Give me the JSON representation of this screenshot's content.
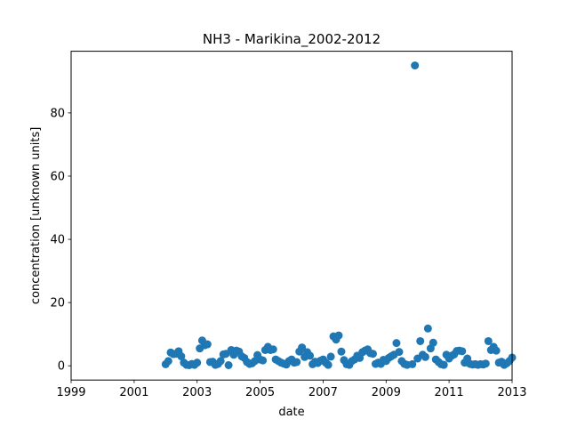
{
  "chart_data": {
    "type": "scatter",
    "title": "NH3 - Marikina_2002-2012",
    "xlabel": "date",
    "ylabel": "concentration [unknown units]",
    "x_is_date": true,
    "xlim": [
      "1999-01-01",
      "2013-01-01"
    ],
    "ylim": [
      -4.5,
      99.5
    ],
    "x_ticks": [
      "1999",
      "2001",
      "2003",
      "2005",
      "2007",
      "2009",
      "2011",
      "2013"
    ],
    "y_ticks": [
      0,
      20,
      40,
      60,
      80
    ],
    "grid": false,
    "legend": "none",
    "color": "#1f77b4",
    "series": [
      {
        "points": [
          [
            "2002-01-01",
            0.5
          ],
          [
            "2002-02-01",
            1.5
          ],
          [
            "2002-03-01",
            4.2
          ],
          [
            "2002-04-01",
            3.7
          ],
          [
            "2002-05-01",
            3.8
          ],
          [
            "2002-06-01",
            4.6
          ],
          [
            "2002-07-01",
            3.0
          ],
          [
            "2002-08-01",
            1.0
          ],
          [
            "2002-09-01",
            0.3
          ],
          [
            "2002-10-01",
            0.2
          ],
          [
            "2002-11-01",
            0.6
          ],
          [
            "2002-12-01",
            0.3
          ],
          [
            "2003-01-01",
            1.0
          ],
          [
            "2003-02-01",
            5.5
          ],
          [
            "2003-03-01",
            8.0
          ],
          [
            "2003-04-01",
            6.5
          ],
          [
            "2003-05-01",
            6.8
          ],
          [
            "2003-06-01",
            1.2
          ],
          [
            "2003-07-01",
            1.3
          ],
          [
            "2003-08-01",
            0.3
          ],
          [
            "2003-09-01",
            0.6
          ],
          [
            "2003-10-01",
            1.5
          ],
          [
            "2003-11-01",
            3.6
          ],
          [
            "2003-12-01",
            3.8
          ],
          [
            "2004-01-01",
            0.2
          ],
          [
            "2004-02-01",
            5.0
          ],
          [
            "2004-03-01",
            3.5
          ],
          [
            "2004-04-01",
            4.8
          ],
          [
            "2004-05-01",
            4.5
          ],
          [
            "2004-06-01",
            3.0
          ],
          [
            "2004-07-01",
            2.5
          ],
          [
            "2004-08-01",
            1.2
          ],
          [
            "2004-09-01",
            0.6
          ],
          [
            "2004-10-01",
            0.8
          ],
          [
            "2004-11-01",
            1.5
          ],
          [
            "2004-12-01",
            3.4
          ],
          [
            "2005-01-01",
            2.0
          ],
          [
            "2005-02-01",
            1.7
          ],
          [
            "2005-03-01",
            5.0
          ],
          [
            "2005-04-01",
            6.0
          ],
          [
            "2005-05-01",
            5.0
          ],
          [
            "2005-06-01",
            5.2
          ],
          [
            "2005-07-01",
            2.0
          ],
          [
            "2005-08-01",
            1.5
          ],
          [
            "2005-09-01",
            1.0
          ],
          [
            "2005-10-01",
            0.7
          ],
          [
            "2005-11-01",
            0.4
          ],
          [
            "2005-12-01",
            1.5
          ],
          [
            "2006-01-01",
            2.0
          ],
          [
            "2006-02-01",
            1.0
          ],
          [
            "2006-03-01",
            1.2
          ],
          [
            "2006-04-01",
            4.5
          ],
          [
            "2006-05-01",
            5.8
          ],
          [
            "2006-06-01",
            2.8
          ],
          [
            "2006-07-01",
            4.3
          ],
          [
            "2006-08-01",
            3.2
          ],
          [
            "2006-09-01",
            0.5
          ],
          [
            "2006-10-01",
            1.3
          ],
          [
            "2006-11-01",
            0.9
          ],
          [
            "2006-12-01",
            1.6
          ],
          [
            "2007-01-01",
            2.0
          ],
          [
            "2007-02-01",
            1.0
          ],
          [
            "2007-03-01",
            0.3
          ],
          [
            "2007-04-01",
            2.9
          ],
          [
            "2007-05-01",
            9.3
          ],
          [
            "2007-06-01",
            8.3
          ],
          [
            "2007-07-01",
            9.6
          ],
          [
            "2007-08-01",
            4.5
          ],
          [
            "2007-09-01",
            1.8
          ],
          [
            "2007-10-01",
            0.5
          ],
          [
            "2007-11-01",
            0.3
          ],
          [
            "2007-12-01",
            1.5
          ],
          [
            "2008-01-01",
            2.0
          ],
          [
            "2008-02-01",
            3.2
          ],
          [
            "2008-03-01",
            2.5
          ],
          [
            "2008-04-01",
            4.3
          ],
          [
            "2008-05-01",
            4.8
          ],
          [
            "2008-06-01",
            5.2
          ],
          [
            "2008-07-01",
            4.0
          ],
          [
            "2008-08-01",
            3.8
          ],
          [
            "2008-09-01",
            0.6
          ],
          [
            "2008-10-01",
            1.0
          ],
          [
            "2008-11-01",
            0.6
          ],
          [
            "2008-12-01",
            1.9
          ],
          [
            "2009-01-01",
            1.5
          ],
          [
            "2009-02-01",
            2.5
          ],
          [
            "2009-03-01",
            3.0
          ],
          [
            "2009-04-01",
            3.5
          ],
          [
            "2009-05-01",
            7.2
          ],
          [
            "2009-06-01",
            4.4
          ],
          [
            "2009-07-01",
            1.5
          ],
          [
            "2009-08-01",
            0.6
          ],
          [
            "2009-09-01",
            0.3
          ],
          [
            "2009-11-01",
            0.5
          ],
          [
            "2009-12-01",
            95.0
          ],
          [
            "2010-01-01",
            2.3
          ],
          [
            "2010-02-01",
            7.8
          ],
          [
            "2010-03-01",
            3.5
          ],
          [
            "2010-04-01",
            2.8
          ],
          [
            "2010-05-01",
            11.8
          ],
          [
            "2010-06-01",
            5.5
          ],
          [
            "2010-07-01",
            7.3
          ],
          [
            "2010-08-01",
            2.0
          ],
          [
            "2010-09-01",
            1.2
          ],
          [
            "2010-10-01",
            0.5
          ],
          [
            "2010-11-01",
            0.3
          ],
          [
            "2010-12-01",
            3.5
          ],
          [
            "2011-01-01",
            2.3
          ],
          [
            "2011-02-01",
            3.2
          ],
          [
            "2011-03-01",
            3.6
          ],
          [
            "2011-04-01",
            4.7
          ],
          [
            "2011-05-01",
            4.8
          ],
          [
            "2011-06-01",
            4.6
          ],
          [
            "2011-07-01",
            1.0
          ],
          [
            "2011-08-01",
            2.3
          ],
          [
            "2011-09-01",
            0.6
          ],
          [
            "2011-10-01",
            0.4
          ],
          [
            "2011-11-01",
            0.5
          ],
          [
            "2011-12-01",
            0.3
          ],
          [
            "2012-01-01",
            0.5
          ],
          [
            "2012-02-01",
            0.4
          ],
          [
            "2012-03-01",
            0.7
          ],
          [
            "2012-04-01",
            7.8
          ],
          [
            "2012-05-01",
            5.0
          ],
          [
            "2012-06-01",
            6.0
          ],
          [
            "2012-07-01",
            4.8
          ],
          [
            "2012-08-01",
            1.0
          ],
          [
            "2012-09-01",
            1.3
          ],
          [
            "2012-10-01",
            0.3
          ],
          [
            "2012-11-01",
            0.8
          ],
          [
            "2012-12-01",
            1.5
          ],
          [
            "2013-01-01",
            2.6
          ]
        ]
      }
    ]
  }
}
